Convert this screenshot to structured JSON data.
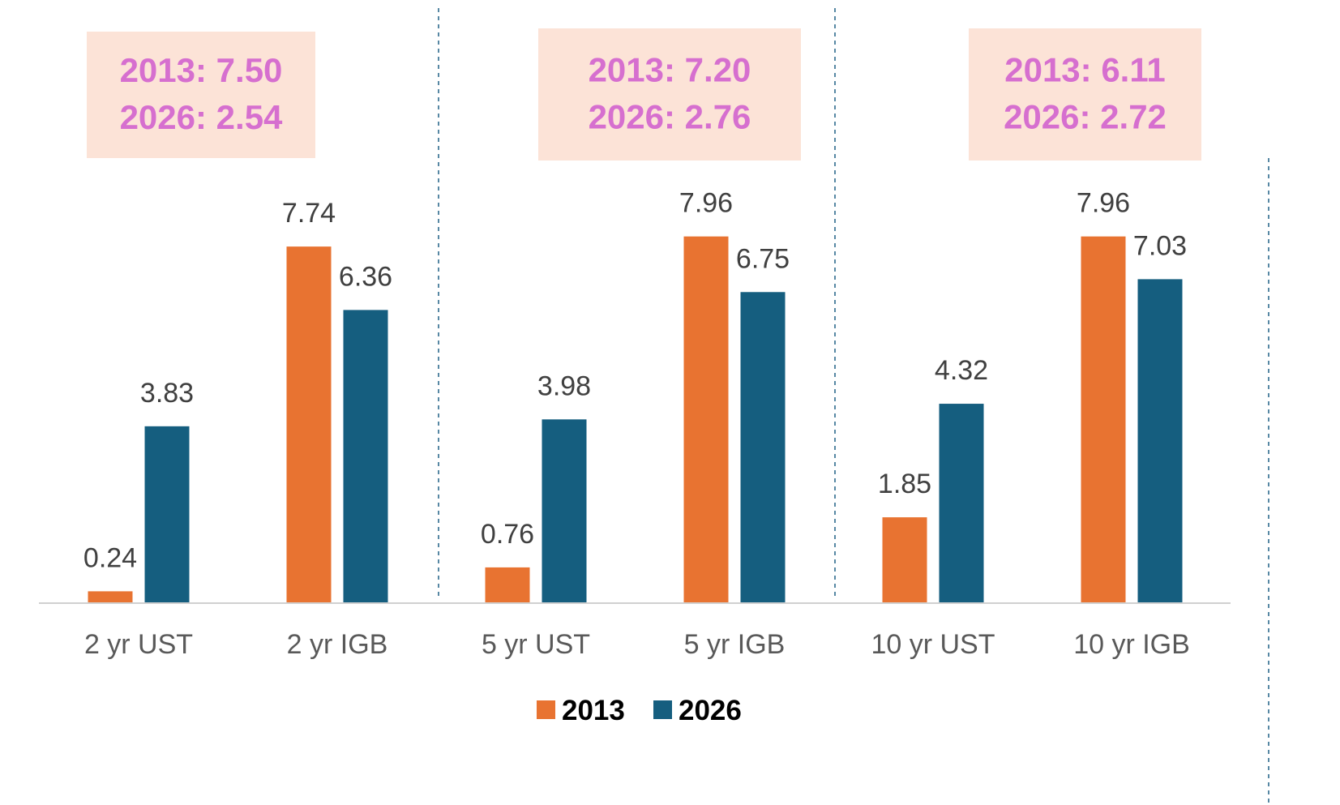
{
  "chart_data": {
    "type": "bar",
    "categories": [
      "2 yr UST",
      "2 yr IGB",
      "5 yr UST",
      "5 yr IGB",
      "10 yr UST",
      "10 yr IGB"
    ],
    "series": [
      {
        "name": "2013",
        "color": "#E87331",
        "values": [
          0.24,
          7.74,
          0.76,
          7.96,
          1.85,
          7.96
        ]
      },
      {
        "name": "2026",
        "color": "#155E7F",
        "values": [
          3.83,
          6.36,
          3.98,
          6.75,
          4.32,
          7.03
        ]
      }
    ],
    "data_labels": [
      [
        "0.24",
        "7.74",
        "0.76",
        "7.96",
        "1.85",
        "7.96"
      ],
      [
        "3.83",
        "6.36",
        "3.98",
        "6.75",
        "4.32",
        "7.03"
      ]
    ],
    "ylim": [
      0,
      10
    ],
    "callouts": [
      {
        "line1": "2013: 7.50",
        "line2": "2026: 2.54"
      },
      {
        "line1": "2013: 7.20",
        "line2": "2026: 2.76"
      },
      {
        "line1": "2013: 6.11",
        "line2": "2026: 2.72"
      }
    ],
    "legend": {
      "position": "bottom-center",
      "items": [
        "2013",
        "2026"
      ]
    },
    "colors": {
      "callout_bg": "#FCE3D7",
      "callout_text": "#D66FCF",
      "divider": "#2E6A8E",
      "axis": "#D0D0D0"
    },
    "grid": false
  }
}
